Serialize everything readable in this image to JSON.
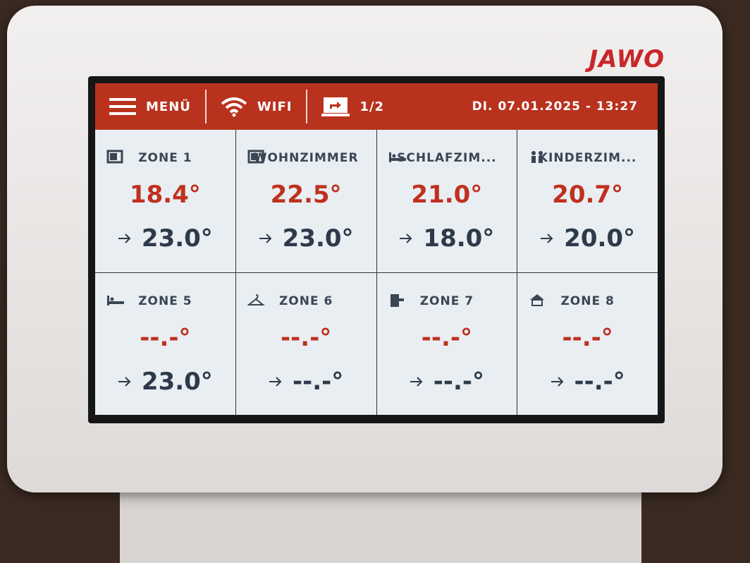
{
  "brand": "JAWO",
  "header": {
    "menu": "MENÜ",
    "wifi": "WIFI",
    "page": "1/2",
    "datetime": "DI. 07.01.2025 - 13:27"
  },
  "zones": [
    {
      "name": "ZONE 1",
      "current": "18.4°",
      "target": "23.0°"
    },
    {
      "name": "WOHNZIMMER",
      "current": "22.5°",
      "target": "23.0°"
    },
    {
      "name": "SCHLAFZIM...",
      "current": "21.0°",
      "target": "18.0°"
    },
    {
      "name": "KINDERZIM...",
      "current": "20.7°",
      "target": "20.0°"
    },
    {
      "name": "ZONE 5",
      "current": "--.-°",
      "target": "23.0°"
    },
    {
      "name": "ZONE 6",
      "current": "--.-°",
      "target": "--.-°"
    },
    {
      "name": "ZONE 7",
      "current": "--.-°",
      "target": "--.-°"
    },
    {
      "name": "ZONE 8",
      "current": "--.-°",
      "target": "--.-°"
    }
  ]
}
